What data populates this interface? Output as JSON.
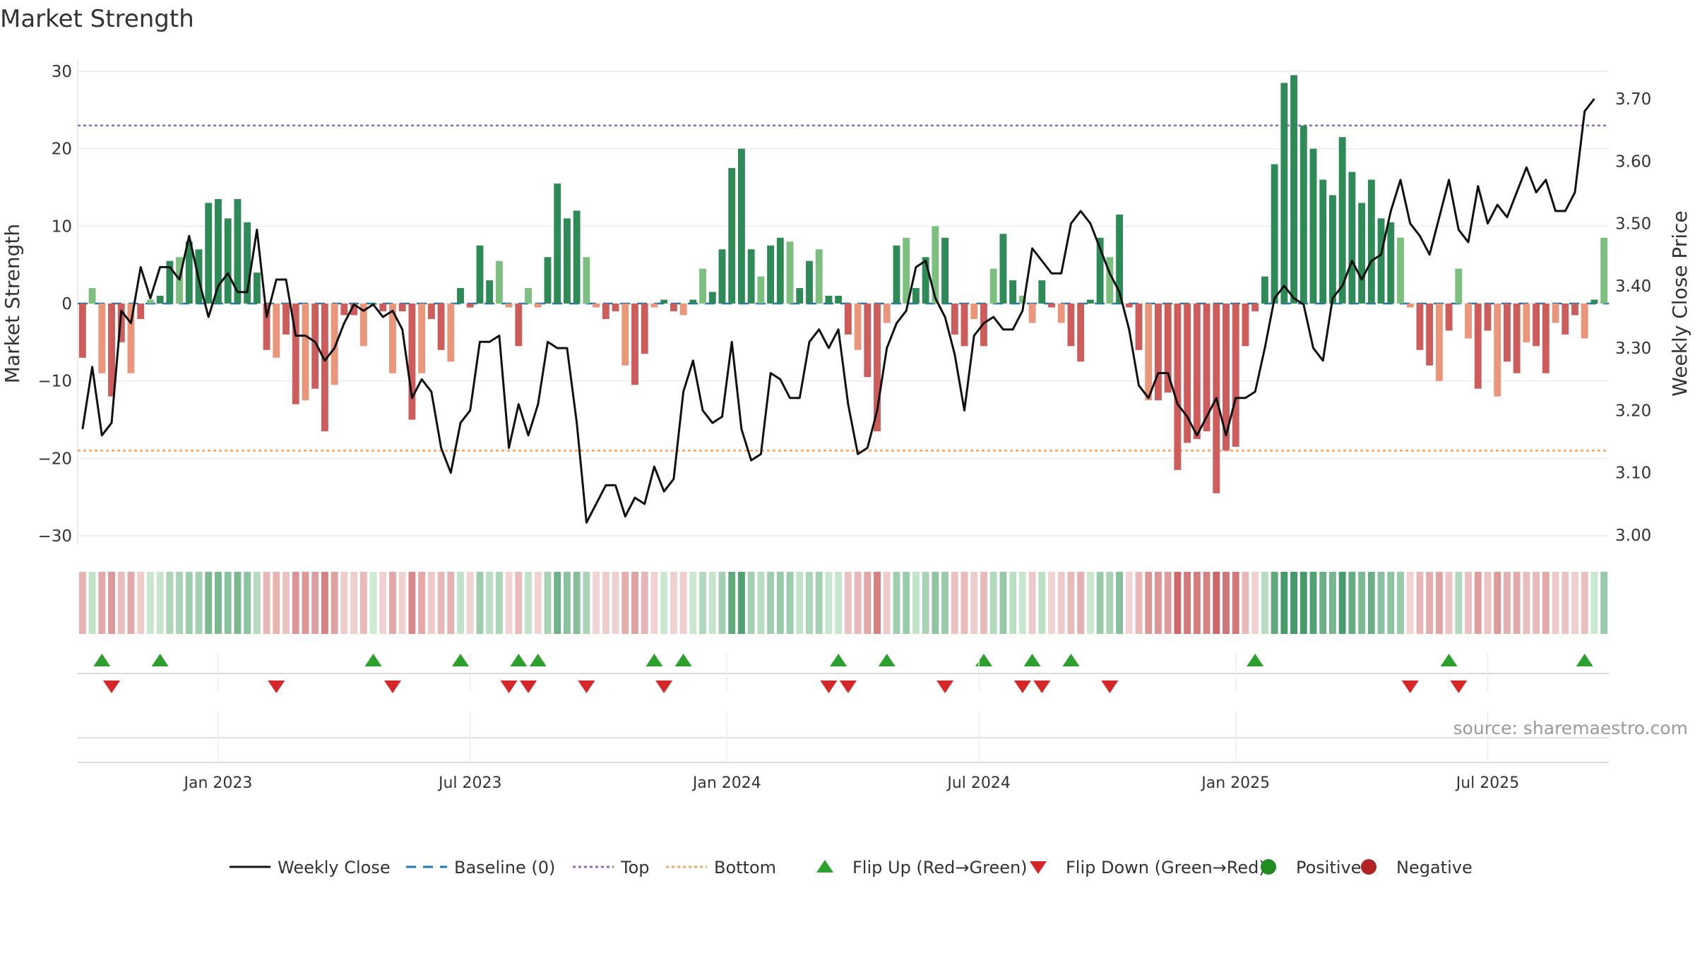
{
  "chart_data": {
    "type": "bar+line",
    "title": "Market Strength",
    "ylabel_left": "Market Strength",
    "ylabel_right": "Weekly Close Price",
    "ylim_left": [
      -30,
      30
    ],
    "yticks_left": [
      30,
      20,
      10,
      0,
      -10,
      -20,
      -30
    ],
    "ytick_labels_left": [
      "30",
      "20",
      "10",
      "0",
      "−10",
      "−20",
      "−30"
    ],
    "ylim_right": [
      3.0,
      3.7
    ],
    "yticks_right": [
      3.7,
      3.6,
      3.5,
      3.4,
      3.3,
      3.2,
      3.1,
      3.0
    ],
    "ytick_labels_right": [
      "3.70",
      "3.60",
      "3.50",
      "3.40",
      "3.30",
      "3.20",
      "3.10",
      "3.00"
    ],
    "x_ticks": [
      {
        "label": "Jan 2023",
        "week": 14
      },
      {
        "label": "Jul 2023",
        "week": 40
      },
      {
        "label": "Jan 2024",
        "week": 66.5
      },
      {
        "label": "Jul 2024",
        "week": 92.5
      },
      {
        "label": "Jan 2025",
        "week": 119
      },
      {
        "label": "Jul 2025",
        "week": 145
      }
    ],
    "reference_lines": {
      "baseline": 0,
      "top": 23,
      "bottom": -19
    },
    "market_strength": [
      -7,
      2,
      -9,
      -12,
      -5,
      -9,
      -2,
      0.5,
      1,
      5.5,
      6,
      8,
      7,
      13,
      13.5,
      11,
      13.5,
      10.5,
      4,
      -6,
      -7,
      -4,
      -13,
      -12.5,
      -11,
      -16.5,
      -10.5,
      -1.5,
      -1.5,
      -5.5,
      0,
      -1,
      -9,
      -1,
      -15,
      -9,
      -2,
      -6,
      -7.5,
      2,
      -0.5,
      7.5,
      3,
      5.5,
      -0.5,
      -5.5,
      2,
      -0.5,
      6,
      15.5,
      11,
      12,
      6,
      -0.5,
      -2,
      -1,
      -8,
      -10.5,
      -6.5,
      -0.5,
      0.5,
      -1,
      -1.5,
      0.5,
      4.5,
      1.5,
      7,
      17.5,
      20,
      7,
      3.5,
      7.5,
      8.5,
      8,
      2,
      5.5,
      7,
      1,
      1,
      -4,
      -6,
      -9.5,
      -16.5,
      -2.5,
      7.5,
      8.5,
      2,
      6,
      10,
      8.5,
      -4,
      -5.5,
      -2,
      -5.5,
      4.5,
      9,
      3,
      1,
      -2.5,
      3,
      -0.5,
      -2.5,
      -5.5,
      -7.5,
      0.5,
      8.5,
      6,
      11.5,
      -0.5,
      -6,
      -12.5,
      -12.5,
      -11.5,
      -21.5,
      -18,
      -17.5,
      -16.5,
      -24.5,
      -19,
      -18.5,
      -5.5,
      -1,
      3.5,
      18,
      28.5,
      29.5,
      23,
      20,
      16,
      14,
      21.5,
      17,
      13,
      16,
      11,
      10.5,
      8.5,
      -0.5,
      -6,
      -8,
      -10,
      -3.5,
      4.5,
      -4.5,
      -11,
      -3.5,
      -12,
      -7.5,
      -9,
      -5,
      -5.5,
      -9,
      -2.5,
      -4,
      -1.5,
      -4.5,
      0.5,
      8.5
    ],
    "weekly_close": [
      3.17,
      3.27,
      3.16,
      3.18,
      3.36,
      3.34,
      3.43,
      3.38,
      3.43,
      3.43,
      3.41,
      3.48,
      3.41,
      3.35,
      3.4,
      3.42,
      3.39,
      3.39,
      3.49,
      3.35,
      3.41,
      3.41,
      3.32,
      3.32,
      3.31,
      3.28,
      3.3,
      3.34,
      3.37,
      3.36,
      3.37,
      3.35,
      3.36,
      3.33,
      3.22,
      3.25,
      3.23,
      3.14,
      3.1,
      3.18,
      3.2,
      3.31,
      3.31,
      3.32,
      3.14,
      3.21,
      3.16,
      3.21,
      3.31,
      3.3,
      3.3,
      3.18,
      3.02,
      3.05,
      3.08,
      3.08,
      3.03,
      3.06,
      3.05,
      3.11,
      3.07,
      3.09,
      3.23,
      3.28,
      3.2,
      3.18,
      3.19,
      3.31,
      3.17,
      3.12,
      3.13,
      3.26,
      3.25,
      3.22,
      3.22,
      3.31,
      3.33,
      3.3,
      3.33,
      3.21,
      3.13,
      3.14,
      3.2,
      3.3,
      3.34,
      3.36,
      3.43,
      3.44,
      3.38,
      3.35,
      3.29,
      3.2,
      3.32,
      3.34,
      3.35,
      3.33,
      3.33,
      3.36,
      3.46,
      3.44,
      3.42,
      3.42,
      3.5,
      3.52,
      3.5,
      3.46,
      3.42,
      3.39,
      3.33,
      3.24,
      3.22,
      3.26,
      3.26,
      3.21,
      3.19,
      3.16,
      3.19,
      3.22,
      3.16,
      3.22,
      3.22,
      3.23,
      3.3,
      3.38,
      3.4,
      3.38,
      3.37,
      3.3,
      3.28,
      3.38,
      3.4,
      3.44,
      3.41,
      3.44,
      3.45,
      3.52,
      3.57,
      3.5,
      3.48,
      3.45,
      3.51,
      3.57,
      3.49,
      3.47,
      3.56,
      3.5,
      3.53,
      3.51,
      3.55,
      3.59,
      3.55,
      3.57,
      3.52,
      3.52,
      3.55,
      3.68,
      3.7
    ],
    "flip_up_weeks": [
      2,
      8,
      30,
      39,
      45,
      47,
      59,
      62,
      78,
      83,
      93,
      98,
      102,
      121,
      141,
      155
    ],
    "flip_down_weeks": [
      3,
      20,
      32,
      44,
      46,
      52,
      60,
      77,
      79,
      89,
      97,
      99,
      106,
      137,
      142
    ],
    "colors": {
      "green_dark": "#2e8b57",
      "green_light": "#7cbf7f",
      "red_dark": "#cd5c5c",
      "red_light": "#e9967a",
      "price_line": "#111111",
      "baseline": "#1f77b4",
      "top": "#9467bd",
      "bottom": "#f4a460",
      "flip_up": "#2ca02c",
      "flip_down": "#d62728",
      "positive": "#228b22",
      "negative": "#b22222"
    }
  },
  "legend": {
    "items": [
      {
        "label": "Weekly Close",
        "kind": "line"
      },
      {
        "label": "Baseline (0)",
        "kind": "dash"
      },
      {
        "label": "Top",
        "kind": "dot-purple"
      },
      {
        "label": "Bottom",
        "kind": "dot-orange"
      },
      {
        "label": "Flip Up (Red→Green)",
        "kind": "tri-up"
      },
      {
        "label": "Flip Down (Green→Red)",
        "kind": "tri-down"
      },
      {
        "label": "Positive",
        "kind": "circle-green"
      },
      {
        "label": "Negative",
        "kind": "circle-red"
      }
    ]
  },
  "source_text": "source: sharemaestro.com"
}
